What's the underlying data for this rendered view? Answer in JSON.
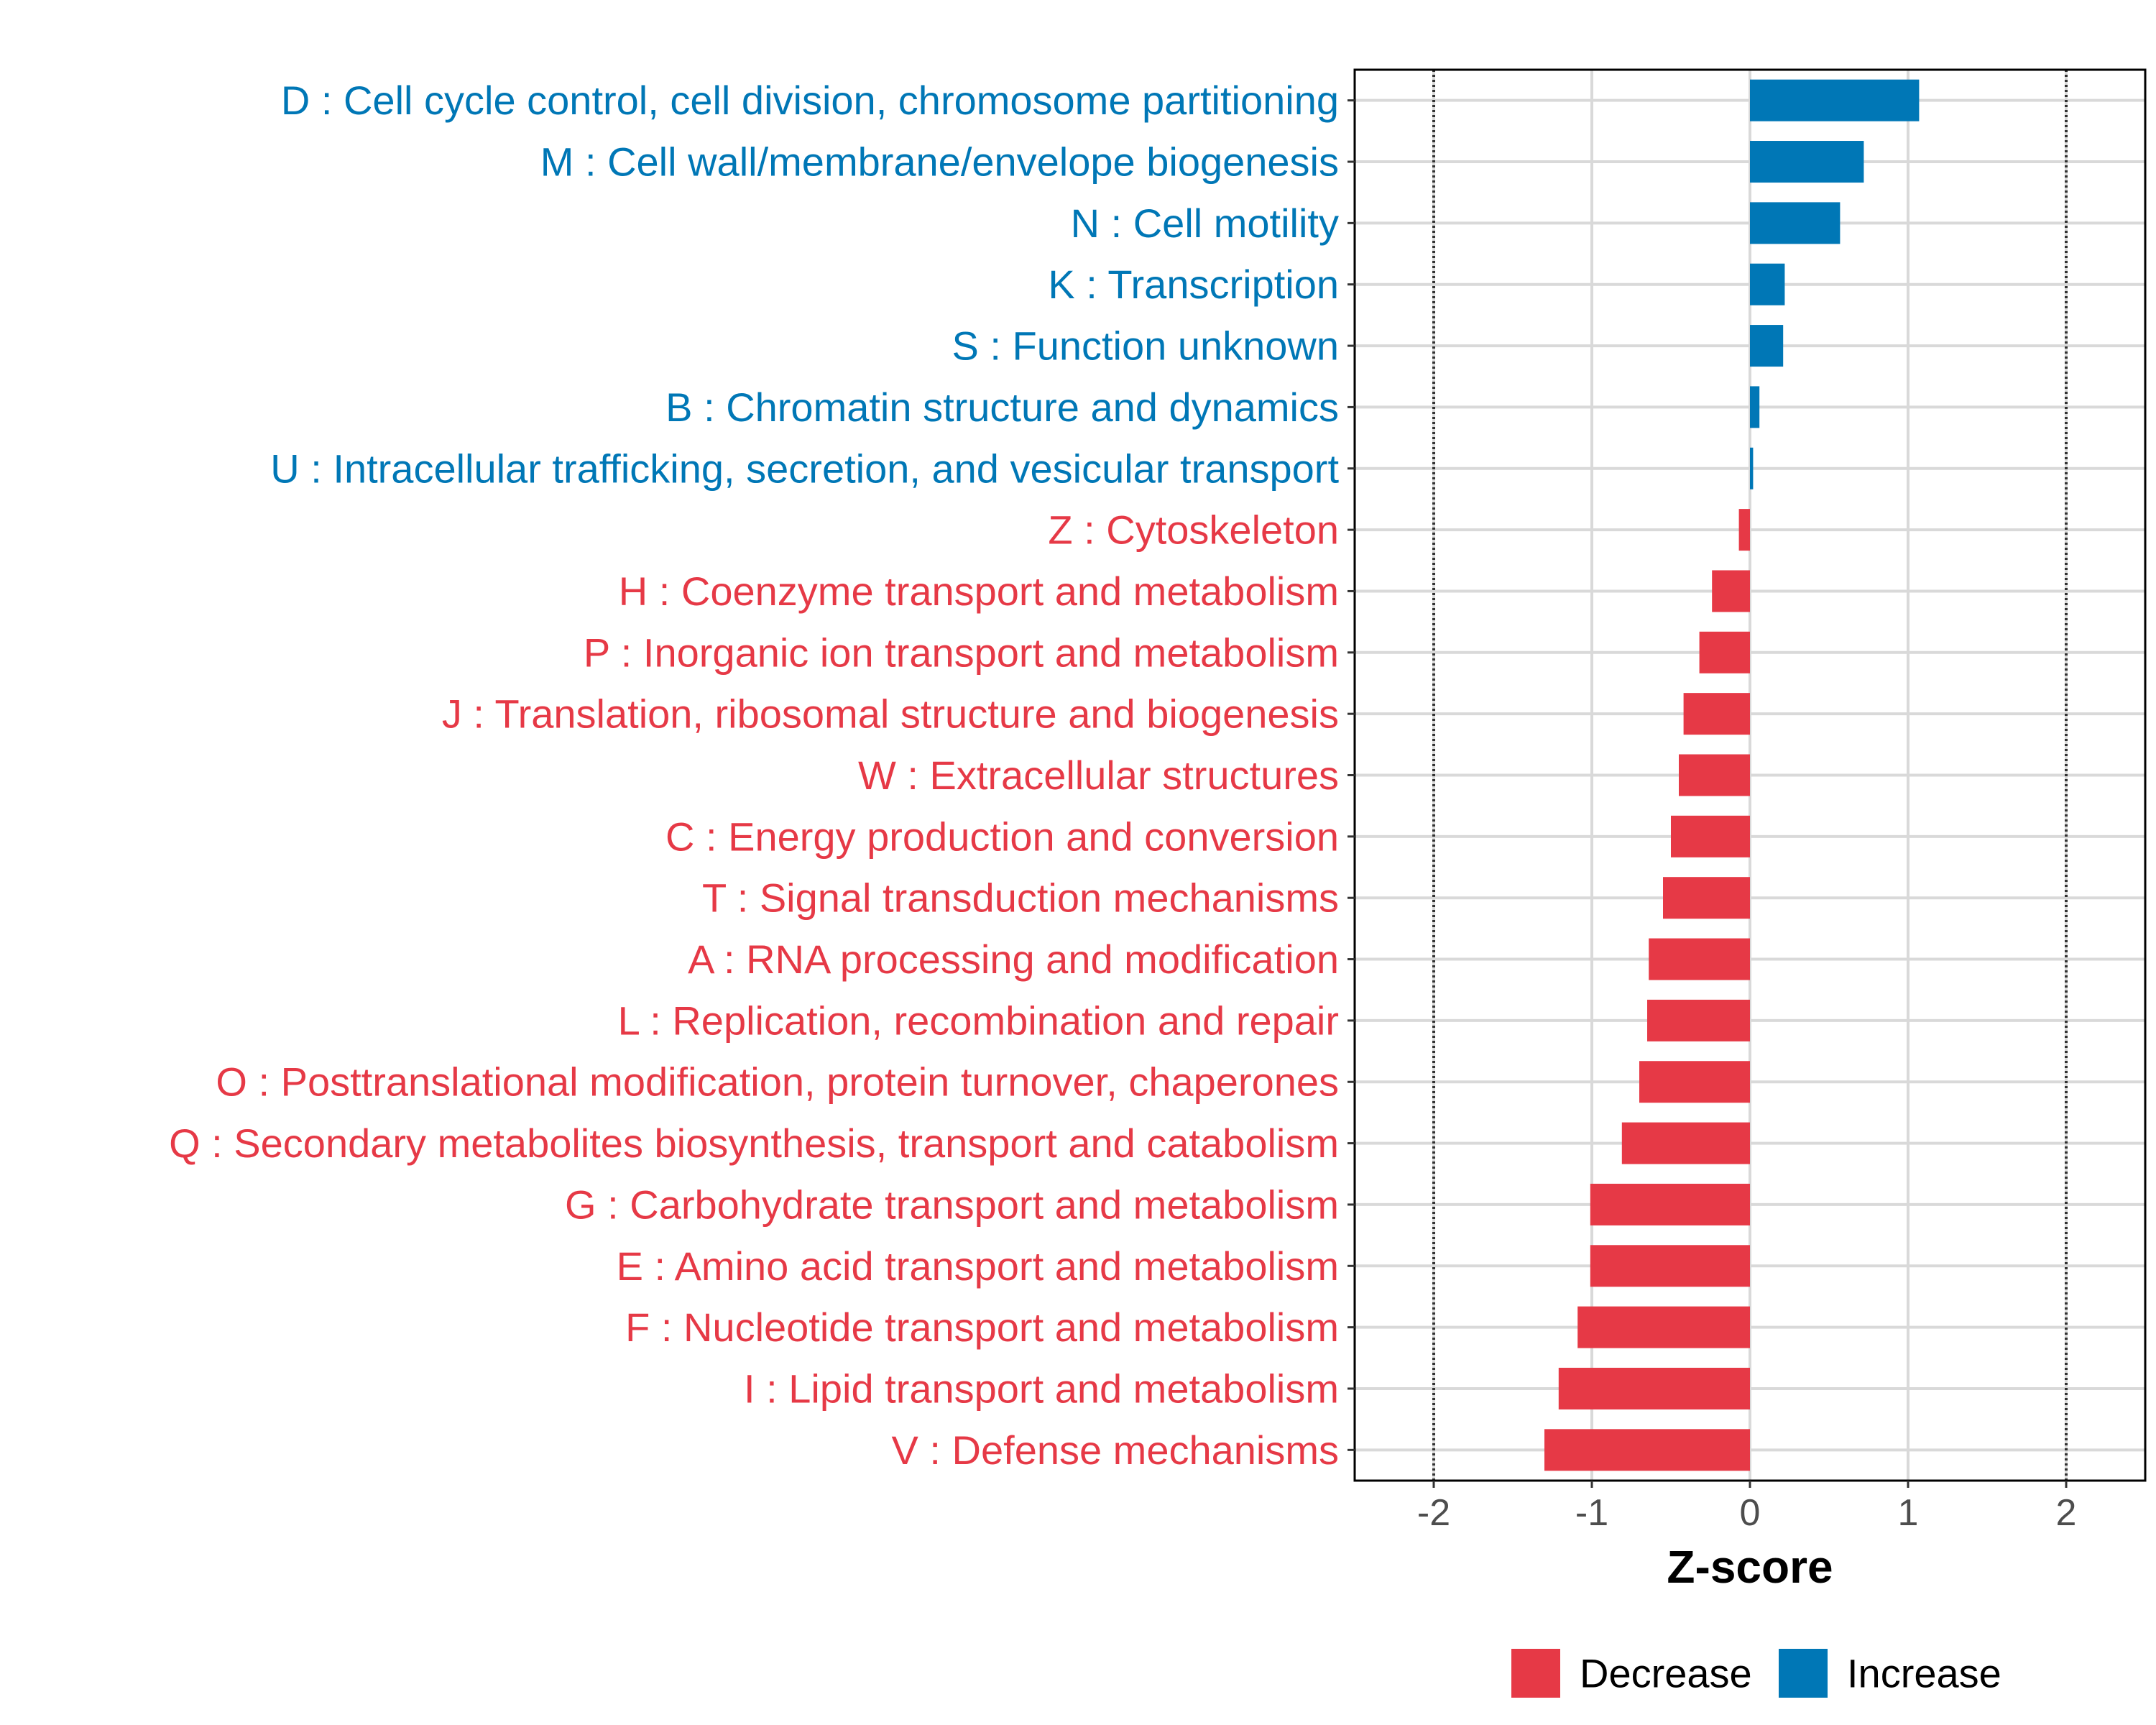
{
  "colors": {
    "decrease": "#E63946",
    "increase": "#0077B6",
    "grid": "#d9d9d9",
    "refline": "#333333",
    "panel_border": "#000000"
  },
  "chart_data": {
    "type": "bar",
    "orientation": "horizontal",
    "title": "",
    "xlabel": "Z-score",
    "ylabel": "",
    "xlim": [
      -2.5,
      2.5
    ],
    "xticks": [
      -2,
      -1,
      0,
      1,
      2
    ],
    "xtick_labels": [
      "-2",
      "-1",
      "0",
      "1",
      "2"
    ],
    "reference_lines": [
      -2,
      2
    ],
    "grid": true,
    "legend": {
      "placement": "bottom-right",
      "entries": [
        {
          "label": "Decrease",
          "color_key": "decrease"
        },
        {
          "label": "Increase",
          "color_key": "increase"
        }
      ]
    },
    "categories": [
      {
        "label": "D : Cell cycle control, cell division, chromosome partitioning",
        "value": 1.07,
        "direction": "Increase"
      },
      {
        "label": "M : Cell wall/membrane/envelope biogenesis",
        "value": 0.72,
        "direction": "Increase"
      },
      {
        "label": "N : Cell motility",
        "value": 0.57,
        "direction": "Increase"
      },
      {
        "label": "K : Transcription",
        "value": 0.22,
        "direction": "Increase"
      },
      {
        "label": "S : Function unknown",
        "value": 0.21,
        "direction": "Increase"
      },
      {
        "label": "B : Chromatin structure and dynamics",
        "value": 0.06,
        "direction": "Increase"
      },
      {
        "label": "U : Intracellular trafficking, secretion, and vesicular transport",
        "value": 0.02,
        "direction": "Increase"
      },
      {
        "label": "Z : Cytoskeleton",
        "value": -0.07,
        "direction": "Decrease"
      },
      {
        "label": "H : Coenzyme transport and metabolism",
        "value": -0.24,
        "direction": "Decrease"
      },
      {
        "label": "P : Inorganic ion transport and metabolism",
        "value": -0.32,
        "direction": "Decrease"
      },
      {
        "label": "J : Translation, ribosomal structure and biogenesis",
        "value": -0.42,
        "direction": "Decrease"
      },
      {
        "label": "W : Extracellular structures",
        "value": -0.45,
        "direction": "Decrease"
      },
      {
        "label": "C : Energy production and conversion",
        "value": -0.5,
        "direction": "Decrease"
      },
      {
        "label": "T : Signal transduction mechanisms",
        "value": -0.55,
        "direction": "Decrease"
      },
      {
        "label": "A : RNA processing and modification",
        "value": -0.64,
        "direction": "Decrease"
      },
      {
        "label": "L : Replication, recombination and repair",
        "value": -0.65,
        "direction": "Decrease"
      },
      {
        "label": "O : Posttranslational modification, protein turnover, chaperones",
        "value": -0.7,
        "direction": "Decrease"
      },
      {
        "label": "Q : Secondary metabolites biosynthesis, transport and catabolism",
        "value": -0.81,
        "direction": "Decrease"
      },
      {
        "label": "G : Carbohydrate transport and metabolism",
        "value": -1.01,
        "direction": "Decrease"
      },
      {
        "label": "E : Amino acid transport and metabolism",
        "value": -1.01,
        "direction": "Decrease"
      },
      {
        "label": "F : Nucleotide transport and metabolism",
        "value": -1.09,
        "direction": "Decrease"
      },
      {
        "label": "I : Lipid transport and metabolism",
        "value": -1.21,
        "direction": "Decrease"
      },
      {
        "label": "V : Defense mechanisms",
        "value": -1.3,
        "direction": "Decrease"
      }
    ]
  }
}
